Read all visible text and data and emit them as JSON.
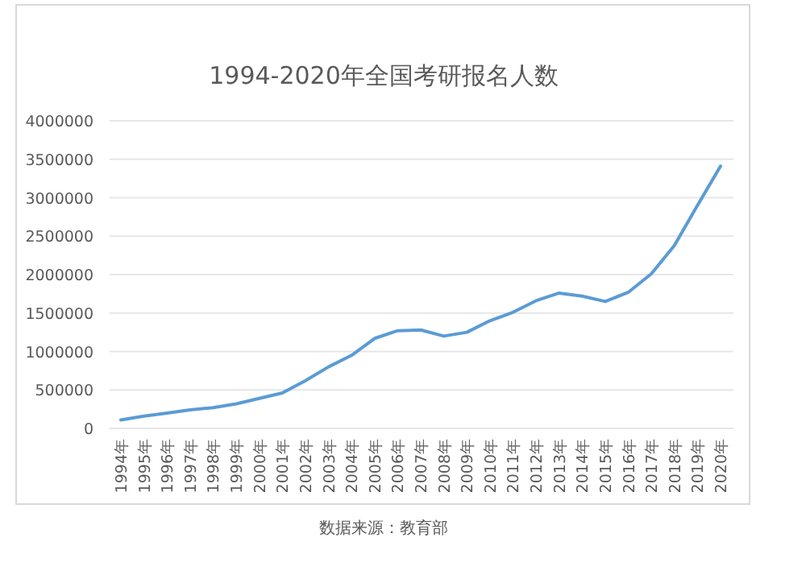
{
  "chart_data": {
    "type": "line",
    "title": "1994-2020年全国考研报名人数",
    "categories": [
      "1994年",
      "1995年",
      "1996年",
      "1997年",
      "1998年",
      "1999年",
      "2000年",
      "2001年",
      "2002年",
      "2003年",
      "2004年",
      "2005年",
      "2006年",
      "2007年",
      "2008年",
      "2009年",
      "2010年",
      "2011年",
      "2012年",
      "2013年",
      "2014年",
      "2015年",
      "2016年",
      "2017年",
      "2018年",
      "2019年",
      "2020年"
    ],
    "values": [
      110000,
      160000,
      200000,
      240000,
      270000,
      320000,
      390000,
      460000,
      620000,
      800000,
      950000,
      1170000,
      1270000,
      1280000,
      1200000,
      1250000,
      1400000,
      1510000,
      1660000,
      1760000,
      1720000,
      1650000,
      1770000,
      2010000,
      2380000,
      2900000,
      3410000
    ],
    "color": "#5b9bd5",
    "ylim": [
      0,
      4000000
    ],
    "yticks": [
      0,
      500000,
      1000000,
      1500000,
      2000000,
      2500000,
      3000000,
      3500000,
      4000000
    ],
    "grid": "y",
    "marker": "none",
    "line_style": "solid",
    "annotations": [
      "数据来源：教育部"
    ]
  }
}
